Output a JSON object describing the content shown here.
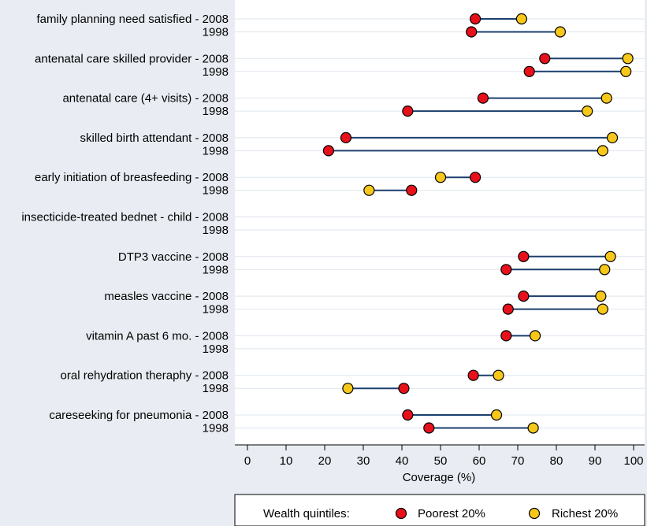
{
  "chart_data": {
    "type": "dumbbell",
    "xlabel": "Coverage (%)",
    "xlim": [
      0,
      100
    ],
    "xticks": [
      0,
      10,
      20,
      30,
      40,
      50,
      60,
      70,
      80,
      90,
      100
    ],
    "rows": [
      {
        "label": "family planning need satisfied - 2008",
        "poorest": 59,
        "richest": 71
      },
      {
        "label": "1998",
        "poorest": 58,
        "richest": 81
      },
      {
        "label": "antenatal care skilled provider - 2008",
        "poorest": 77,
        "richest": 98.5
      },
      {
        "label": "1998",
        "poorest": 73,
        "richest": 98
      },
      {
        "label": "antenatal care (4+ visits) - 2008",
        "poorest": 61,
        "richest": 93
      },
      {
        "label": "1998",
        "poorest": 41.5,
        "richest": 88
      },
      {
        "label": "skilled birth attendant - 2008",
        "poorest": 25.5,
        "richest": 94.5
      },
      {
        "label": "1998",
        "poorest": 21,
        "richest": 92
      },
      {
        "label": "early initiation of breasfeeding - 2008",
        "poorest": 59,
        "richest": 50
      },
      {
        "label": "1998",
        "poorest": 42.5,
        "richest": 31.5
      },
      {
        "label": "insecticide-treated bednet - child - 2008",
        "poorest": null,
        "richest": null
      },
      {
        "label": "1998",
        "poorest": null,
        "richest": null
      },
      {
        "label": "DTP3 vaccine - 2008",
        "poorest": 71.5,
        "richest": 94
      },
      {
        "label": "1998",
        "poorest": 67,
        "richest": 92.5
      },
      {
        "label": "measles vaccine - 2008",
        "poorest": 71.5,
        "richest": 91.5
      },
      {
        "label": "1998",
        "poorest": 67.5,
        "richest": 92
      },
      {
        "label": "vitamin A past 6 mo. - 2008",
        "poorest": 67,
        "richest": 74.5
      },
      {
        "label": "1998",
        "poorest": null,
        "richest": null
      },
      {
        "label": "oral rehydration theraphy - 2008",
        "poorest": 58.5,
        "richest": 65
      },
      {
        "label": "1998",
        "poorest": 40.5,
        "richest": 26
      },
      {
        "label": "careseeking for pneumonia - 2008",
        "poorest": 41.5,
        "richest": 64.5
      },
      {
        "label": "1998",
        "poorest": 47,
        "richest": 74
      }
    ],
    "legend": {
      "title": "Wealth quintiles:",
      "placement": "bottom",
      "items": [
        {
          "name": "Poorest 20%",
          "color": "#e8101a"
        },
        {
          "name": "Richest 20%",
          "color": "#f7c81a"
        }
      ]
    },
    "grid": true
  },
  "colors": {
    "background": "#e9edf3",
    "plot_background": "#ffffff",
    "grid": "#dde5ee",
    "line": "#1b3f6e",
    "poorest": "#e8101a",
    "richest": "#f7c81a"
  }
}
